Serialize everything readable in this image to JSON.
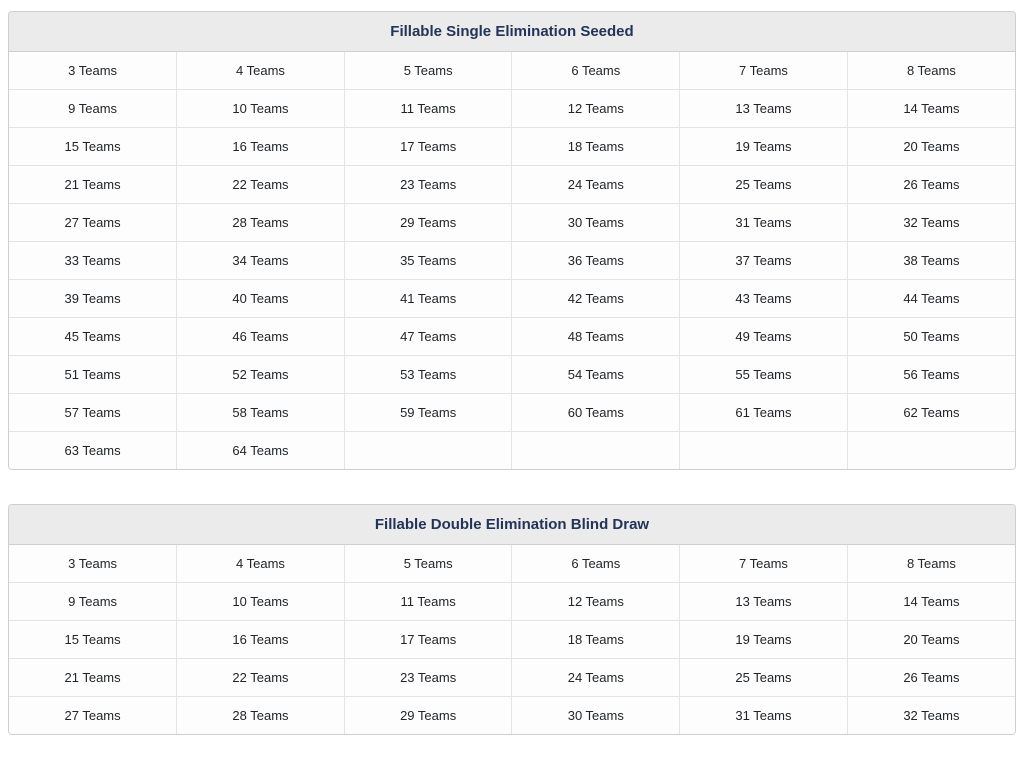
{
  "colors": {
    "page_background": "#ffffff",
    "header_background": "#ebebeb",
    "title_text": "#223457",
    "cell_text": "#212529",
    "outer_border": "#cfcfcf",
    "inner_border": "#e4e4e4"
  },
  "tables": [
    {
      "title": "Fillable Single Elimination Seeded",
      "rows": [
        [
          "3 Teams",
          "4 Teams",
          "5 Teams",
          "6 Teams",
          "7 Teams",
          "8 Teams"
        ],
        [
          "9 Teams",
          "10 Teams",
          "11 Teams",
          "12 Teams",
          "13 Teams",
          "14 Teams"
        ],
        [
          "15 Teams",
          "16 Teams",
          "17 Teams",
          "18 Teams",
          "19 Teams",
          "20 Teams"
        ],
        [
          "21 Teams",
          "22 Teams",
          "23 Teams",
          "24 Teams",
          "25 Teams",
          "26 Teams"
        ],
        [
          "27 Teams",
          "28 Teams",
          "29 Teams",
          "30 Teams",
          "31 Teams",
          "32 Teams"
        ],
        [
          "33 Teams",
          "34 Teams",
          "35 Teams",
          "36 Teams",
          "37 Teams",
          "38 Teams"
        ],
        [
          "39 Teams",
          "40 Teams",
          "41 Teams",
          "42 Teams",
          "43 Teams",
          "44 Teams"
        ],
        [
          "45 Teams",
          "46 Teams",
          "47 Teams",
          "48 Teams",
          "49 Teams",
          "50 Teams"
        ],
        [
          "51 Teams",
          "52 Teams",
          "53 Teams",
          "54 Teams",
          "55 Teams",
          "56 Teams"
        ],
        [
          "57 Teams",
          "58 Teams",
          "59 Teams",
          "60 Teams",
          "61 Teams",
          "62 Teams"
        ],
        [
          "63 Teams",
          "64 Teams",
          "",
          "",
          "",
          ""
        ]
      ]
    },
    {
      "title": "Fillable Double Elimination Blind Draw",
      "rows": [
        [
          "3 Teams",
          "4 Teams",
          "5 Teams",
          "6 Teams",
          "7 Teams",
          "8 Teams"
        ],
        [
          "9 Teams",
          "10 Teams",
          "11 Teams",
          "12 Teams",
          "13 Teams",
          "14 Teams"
        ],
        [
          "15 Teams",
          "16 Teams",
          "17 Teams",
          "18 Teams",
          "19 Teams",
          "20 Teams"
        ],
        [
          "21 Teams",
          "22 Teams",
          "23 Teams",
          "24 Teams",
          "25 Teams",
          "26 Teams"
        ],
        [
          "27 Teams",
          "28 Teams",
          "29 Teams",
          "30 Teams",
          "31 Teams",
          "32 Teams"
        ]
      ]
    }
  ]
}
